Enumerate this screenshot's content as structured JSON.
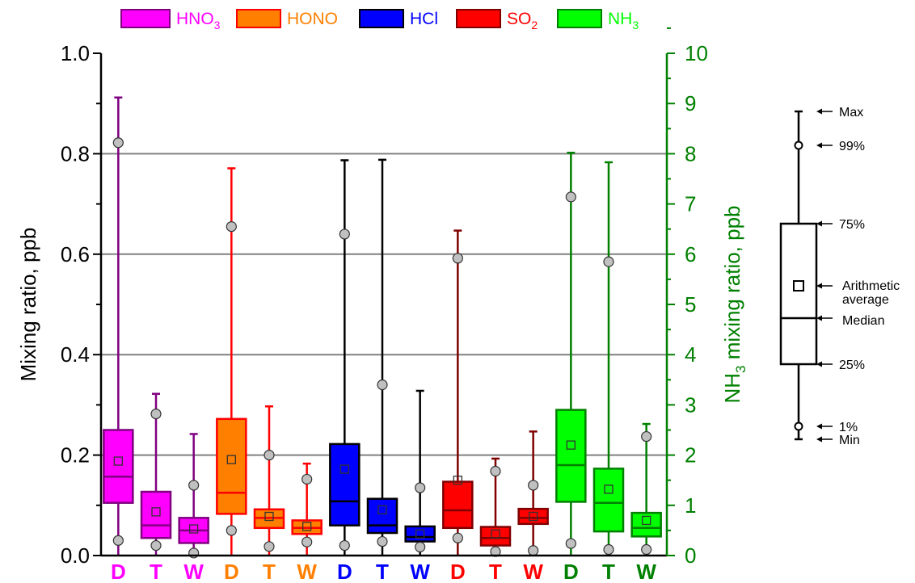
{
  "chart_data": {
    "type": "box",
    "legend": [
      {
        "base": "HNO",
        "sub": "3",
        "color": "#ff00ff",
        "stroke": "#800080"
      },
      {
        "base": "HONO",
        "sub": "",
        "color": "#ff7f00",
        "stroke": "#ff0000"
      },
      {
        "base": "HCl",
        "sub": "",
        "color": "#0000ff",
        "stroke": "#000000"
      },
      {
        "base": "SO",
        "sub": "2",
        "color": "#ff0000",
        "stroke": "#800000"
      },
      {
        "base": "NH",
        "sub": "3",
        "color": "#00ff00",
        "stroke": "#008000"
      }
    ],
    "ylabel_left": "Mixing ratio,  ppb",
    "ylabel_right": {
      "prefix": "NH",
      "sub": "3",
      "suffix": " mixing ratio,  ppb"
    },
    "ylim_left": [
      0,
      1.0
    ],
    "ylim_right": [
      0,
      10
    ],
    "yticks_left": [
      "0.0",
      "0.2",
      "0.4",
      "0.6",
      "0.8",
      "1.0"
    ],
    "yticks_right": [
      "0",
      "1",
      "2",
      "3",
      "4",
      "5",
      "6",
      "7",
      "8",
      "9",
      "10"
    ],
    "grid_lines": [
      0.2,
      0.4,
      0.6,
      0.8
    ],
    "categories": [
      "D",
      "T",
      "W",
      "D",
      "T",
      "W",
      "D",
      "T",
      "W",
      "D",
      "T",
      "W",
      "D",
      "T",
      "W"
    ],
    "category_colors": [
      "#ff00ff",
      "#ff00ff",
      "#ff00ff",
      "#ff7f00",
      "#ff7f00",
      "#ff7f00",
      "#0000ff",
      "#0000ff",
      "#0000ff",
      "#ff0000",
      "#ff0000",
      "#ff0000",
      "#008000",
      "#008000",
      "#008000"
    ],
    "series": [
      {
        "name": "HNO3",
        "axis": "left",
        "fill": "#ff00ff",
        "stroke": "#800080",
        "boxes": [
          {
            "min": 0.0,
            "p1": 0.03,
            "q1": 0.105,
            "median": 0.157,
            "mean": 0.188,
            "q3": 0.25,
            "p99": 0.822,
            "max": 0.912
          },
          {
            "min": 0.0,
            "p1": 0.02,
            "q1": 0.035,
            "median": 0.06,
            "mean": 0.087,
            "q3": 0.127,
            "p99": 0.282,
            "max": 0.322
          },
          {
            "min": 0.0,
            "p1": 0.005,
            "q1": 0.025,
            "median": 0.05,
            "mean": 0.053,
            "q3": 0.075,
            "p99": 0.14,
            "max": 0.242
          }
        ]
      },
      {
        "name": "HONO",
        "axis": "left",
        "fill": "#ff7f00",
        "stroke": "#ff0000",
        "boxes": [
          {
            "min": 0.0,
            "p1": 0.05,
            "q1": 0.083,
            "median": 0.125,
            "mean": 0.191,
            "q3": 0.272,
            "p99": 0.655,
            "max": 0.771
          },
          {
            "min": 0.0,
            "p1": 0.018,
            "q1": 0.055,
            "median": 0.075,
            "mean": 0.078,
            "q3": 0.092,
            "p99": 0.2,
            "max": 0.297
          },
          {
            "min": 0.0,
            "p1": 0.027,
            "q1": 0.043,
            "median": 0.055,
            "mean": 0.058,
            "q3": 0.07,
            "p99": 0.152,
            "max": 0.183
          }
        ]
      },
      {
        "name": "HCl",
        "axis": "left",
        "fill": "#0000ff",
        "stroke": "#000000",
        "boxes": [
          {
            "min": 0.0,
            "p1": 0.02,
            "q1": 0.06,
            "median": 0.108,
            "mean": 0.172,
            "q3": 0.222,
            "p99": 0.64,
            "max": 0.787
          },
          {
            "min": 0.0,
            "p1": 0.028,
            "q1": 0.045,
            "median": 0.06,
            "mean": 0.091,
            "q3": 0.113,
            "p99": 0.34,
            "max": 0.788
          },
          {
            "min": 0.0,
            "p1": 0.017,
            "q1": 0.028,
            "median": 0.037,
            "mean": 0.043,
            "q3": 0.058,
            "p99": 0.135,
            "max": 0.328
          }
        ]
      },
      {
        "name": "SO2",
        "axis": "left",
        "fill": "#ff0000",
        "stroke": "#800000",
        "boxes": [
          {
            "min": 0.0,
            "p1": 0.035,
            "q1": 0.055,
            "median": 0.09,
            "mean": 0.15,
            "q3": 0.147,
            "p99": 0.592,
            "max": 0.647
          },
          {
            "min": 0.0,
            "p1": 0.008,
            "q1": 0.02,
            "median": 0.035,
            "mean": 0.043,
            "q3": 0.057,
            "p99": 0.168,
            "max": 0.193
          },
          {
            "min": 0.0,
            "p1": 0.01,
            "q1": 0.063,
            "median": 0.075,
            "mean": 0.078,
            "q3": 0.093,
            "p99": 0.14,
            "max": 0.247
          }
        ]
      },
      {
        "name": "NH3",
        "axis": "right",
        "fill": "#00ff00",
        "stroke": "#008000",
        "boxes": [
          {
            "min": 0.0,
            "p1": 0.24,
            "q1": 1.07,
            "median": 1.8,
            "mean": 2.2,
            "q3": 2.9,
            "p99": 7.14,
            "max": 8.02
          },
          {
            "min": 0.0,
            "p1": 0.12,
            "q1": 0.48,
            "median": 1.05,
            "mean": 1.32,
            "q3": 1.73,
            "p99": 5.85,
            "max": 7.83
          },
          {
            "min": 0.0,
            "p1": 0.12,
            "q1": 0.38,
            "median": 0.55,
            "mean": 0.7,
            "q3": 0.85,
            "p99": 2.37,
            "max": 2.62
          }
        ]
      }
    ],
    "key": {
      "labels": {
        "max": "Max",
        "p99": "99%",
        "q3": "75%",
        "mean": "Arithmetic average",
        "median": "Median",
        "q1": "25%",
        "p1": "1%",
        "min": "Min"
      }
    }
  }
}
